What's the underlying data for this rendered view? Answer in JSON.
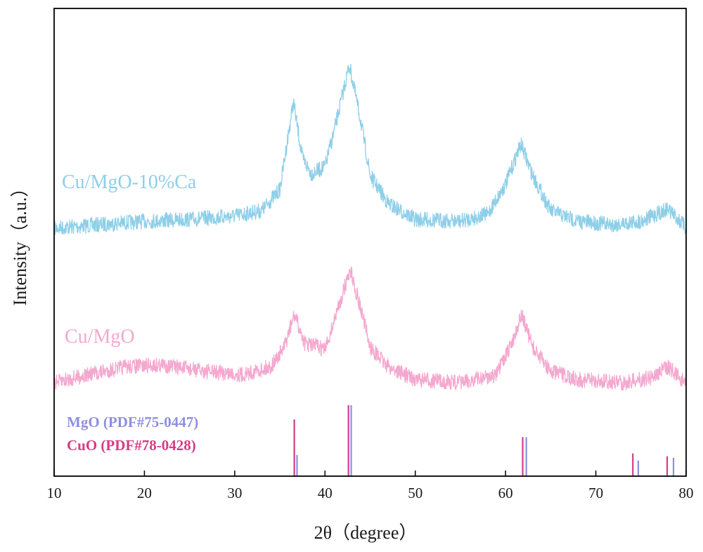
{
  "chart_data": {
    "type": "line",
    "xlabel": "2θ（degree）",
    "ylabel": "Intensity（a.u.）",
    "xlim": [
      10,
      80
    ],
    "x_ticks": [
      10,
      20,
      30,
      40,
      50,
      60,
      70,
      80
    ],
    "x_tick_labels": [
      "10",
      "20",
      "30",
      "40",
      "50",
      "60",
      "70",
      "80"
    ],
    "y_ticks_shown": false,
    "grid": false,
    "series": [
      {
        "name": "Cu/MgO-10%Ca",
        "color": "#8ecfe8",
        "offset_level": "upper",
        "points": [
          [
            10,
            0.0
          ],
          [
            15,
            0.02
          ],
          [
            20,
            0.04
          ],
          [
            25,
            0.05
          ],
          [
            30,
            0.07
          ],
          [
            33,
            0.1
          ],
          [
            35,
            0.22
          ],
          [
            36.5,
            0.72
          ],
          [
            37.5,
            0.4
          ],
          [
            38.5,
            0.31
          ],
          [
            40,
            0.35
          ],
          [
            41,
            0.55
          ],
          [
            42.7,
            0.93
          ],
          [
            44,
            0.6
          ],
          [
            45,
            0.3
          ],
          [
            47,
            0.14
          ],
          [
            50,
            0.05
          ],
          [
            55,
            0.04
          ],
          [
            58,
            0.08
          ],
          [
            60,
            0.25
          ],
          [
            61.7,
            0.48
          ],
          [
            63,
            0.3
          ],
          [
            65,
            0.1
          ],
          [
            68,
            0.04
          ],
          [
            72,
            0.02
          ],
          [
            75,
            0.04
          ],
          [
            78,
            0.11
          ],
          [
            79.5,
            0.03
          ],
          [
            80,
            0.0
          ]
        ]
      },
      {
        "name": "Cu/MgO",
        "color": "#f4a8cf",
        "offset_level": "lower",
        "points": [
          [
            10,
            0.0
          ],
          [
            13,
            0.04
          ],
          [
            18,
            0.1
          ],
          [
            22,
            0.11
          ],
          [
            27,
            0.07
          ],
          [
            31,
            0.05
          ],
          [
            34,
            0.1
          ],
          [
            35.5,
            0.22
          ],
          [
            36.6,
            0.42
          ],
          [
            37.8,
            0.24
          ],
          [
            39,
            0.23
          ],
          [
            40,
            0.2
          ],
          [
            41,
            0.38
          ],
          [
            42.8,
            0.7
          ],
          [
            44,
            0.45
          ],
          [
            45,
            0.22
          ],
          [
            47,
            0.1
          ],
          [
            50,
            0.02
          ],
          [
            55,
            0.0
          ],
          [
            59,
            0.05
          ],
          [
            60.5,
            0.22
          ],
          [
            61.8,
            0.42
          ],
          [
            63,
            0.22
          ],
          [
            65,
            0.07
          ],
          [
            68,
            0.02
          ],
          [
            73,
            0.0
          ],
          [
            76,
            0.03
          ],
          [
            78,
            0.1
          ],
          [
            79.5,
            0.02
          ],
          [
            80,
            0.0
          ]
        ]
      }
    ],
    "reference_patterns": [
      {
        "name": "MgO (PDF#75-0447)",
        "color": "#8f8ee0",
        "peaks": [
          {
            "x": 36.9,
            "rel_intensity": 0.3
          },
          {
            "x": 42.9,
            "rel_intensity": 1.0
          },
          {
            "x": 62.3,
            "rel_intensity": 0.55
          },
          {
            "x": 74.7,
            "rel_intensity": 0.22
          },
          {
            "x": 78.6,
            "rel_intensity": 0.26
          }
        ]
      },
      {
        "name": "CuO (PDF#78-0428)",
        "color": "#d63c86",
        "peaks": [
          {
            "x": 36.6,
            "rel_intensity": 0.8
          },
          {
            "x": 42.6,
            "rel_intensity": 1.0
          },
          {
            "x": 61.9,
            "rel_intensity": 0.55
          },
          {
            "x": 74.1,
            "rel_intensity": 0.32
          },
          {
            "x": 77.9,
            "rel_intensity": 0.28
          }
        ]
      }
    ]
  }
}
